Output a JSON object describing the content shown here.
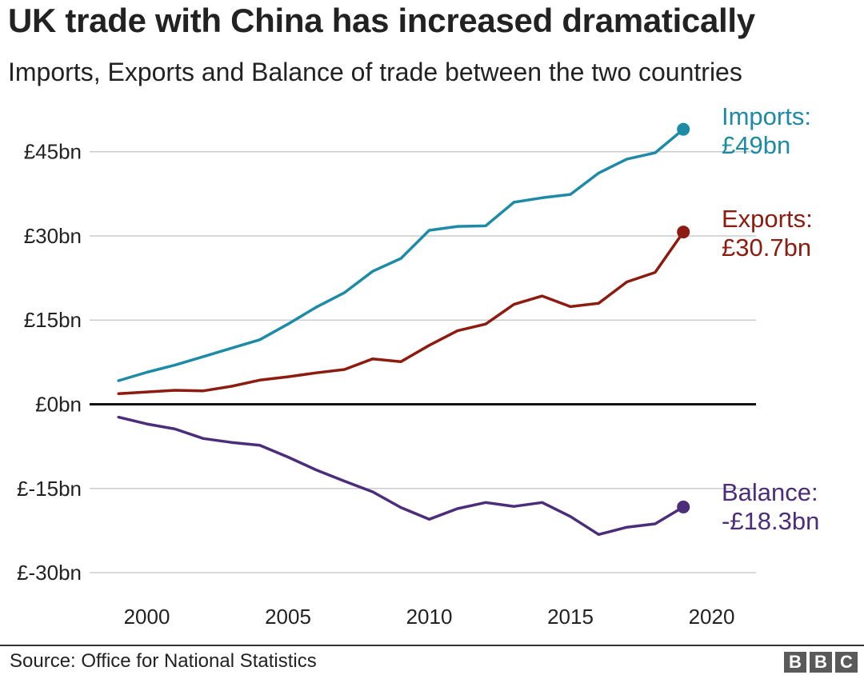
{
  "header": {
    "title": "UK trade with China has increased dramatically",
    "subtitle": "Imports, Exports and Balance of trade between the two countries"
  },
  "footer": {
    "source": "Source: Office for National Statistics",
    "logo_letters": [
      "B",
      "B",
      "C"
    ]
  },
  "chart_data": {
    "type": "line",
    "title": "UK trade with China has increased dramatically",
    "subtitle": "Imports, Exports and Balance of trade between the two countries",
    "xlabel": "",
    "ylabel": "",
    "xlim": [
      1998,
      2021
    ],
    "ylim": [
      -32,
      52
    ],
    "x_ticks": [
      2000,
      2005,
      2010,
      2015,
      2020
    ],
    "x_tick_labels": [
      "2000",
      "2005",
      "2010",
      "2015",
      "2020"
    ],
    "y_ticks": [
      45,
      30,
      15,
      0,
      -15,
      -30
    ],
    "y_tick_labels": [
      "£45bn",
      "£30bn",
      "£15bn",
      "£0bn",
      "£-15bn",
      "£-30bn"
    ],
    "grid": "horizontal",
    "x": [
      1999,
      2000,
      2001,
      2002,
      2003,
      2004,
      2005,
      2006,
      2007,
      2008,
      2009,
      2010,
      2011,
      2012,
      2013,
      2014,
      2015,
      2016,
      2017,
      2018,
      2019
    ],
    "series": [
      {
        "name": "Imports",
        "color": "#1d8aa6",
        "values": [
          4.2,
          5.7,
          7.0,
          8.5,
          10.0,
          11.5,
          14.3,
          17.3,
          19.9,
          23.7,
          26.0,
          31.0,
          31.7,
          31.8,
          36.0,
          36.8,
          37.4,
          41.2,
          43.7,
          44.8,
          49.0
        ],
        "end_label": [
          "Imports:",
          "£49bn"
        ]
      },
      {
        "name": "Exports",
        "color": "#8c1b10",
        "values": [
          1.9,
          2.2,
          2.5,
          2.4,
          3.2,
          4.3,
          4.9,
          5.6,
          6.2,
          8.1,
          7.6,
          10.5,
          13.1,
          14.3,
          17.8,
          19.3,
          17.4,
          18.0,
          21.8,
          23.5,
          30.7
        ],
        "end_label": [
          "Exports:",
          "£30.7bn"
        ]
      },
      {
        "name": "Balance",
        "color": "#4b2d79",
        "values": [
          -2.3,
          -3.5,
          -4.4,
          -6.1,
          -6.8,
          -7.3,
          -9.4,
          -11.7,
          -13.7,
          -15.6,
          -18.4,
          -20.5,
          -18.6,
          -17.5,
          -18.2,
          -17.5,
          -20.0,
          -23.2,
          -21.9,
          -21.3,
          -18.3
        ],
        "end_label": [
          "Balance:",
          "-£18.3bn"
        ]
      }
    ],
    "zero_line": true
  }
}
